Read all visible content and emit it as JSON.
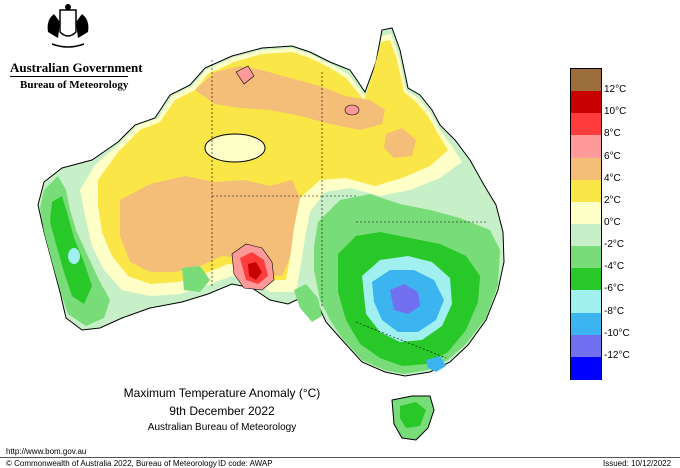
{
  "header": {
    "government": "Australian Government",
    "bureau": "Bureau of Meteorology"
  },
  "map": {
    "title": "Maximum Temperature Anomaly (°C)",
    "date": "9th December 2022",
    "source": "Australian Bureau of Meteorology"
  },
  "legend": {
    "items": [
      {
        "label": "",
        "color": "#9b6e3c"
      },
      {
        "label": "12°C",
        "color": "#c80000"
      },
      {
        "label": "10°C",
        "color": "#ff3c3c"
      },
      {
        "label": "8°C",
        "color": "#ff9a9a"
      },
      {
        "label": "6°C",
        "color": "#f5be78"
      },
      {
        "label": "4°C",
        "color": "#fae646"
      },
      {
        "label": "2°C",
        "color": "#ffffc8"
      },
      {
        "label": "0°C",
        "color": "#c8f0c8"
      },
      {
        "label": "-2°C",
        "color": "#78dc78"
      },
      {
        "label": "-4°C",
        "color": "#28c828"
      },
      {
        "label": "-6°C",
        "color": "#a0f0f0"
      },
      {
        "label": "-8°C",
        "color": "#3cb4f0"
      },
      {
        "label": "-10°C",
        "color": "#7070f0"
      },
      {
        "label": "-12°C",
        "color": "#0000ff"
      }
    ]
  },
  "footer": {
    "url": "http://www.bom.gov.au",
    "copyright": "© Commonwealth of Australia 2022, Bureau of Meteorology",
    "id_code": "ID code: AWAP",
    "issued": "Issued: 10/12/2022"
  }
}
